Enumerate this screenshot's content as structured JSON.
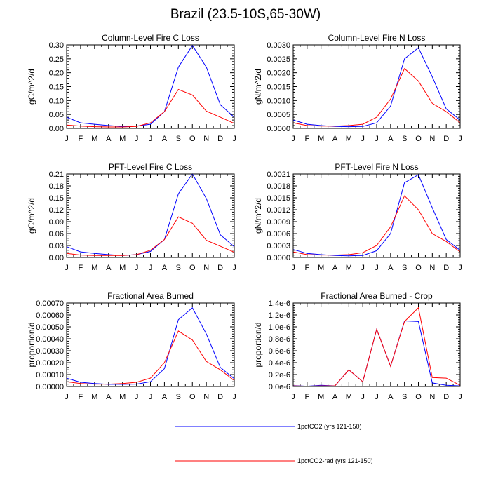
{
  "figure_title": "Brazil (23.5-10S,65-30W)",
  "legend": [
    {
      "label": "1pctCO2 (yrs 121-150)",
      "color": "#0000ff"
    },
    {
      "label": "1pctCO2-rad (yrs 121-150)",
      "color": "#ff0000"
    }
  ],
  "chart_data": [
    {
      "type": "line",
      "title": "Column-Level Fire C Loss",
      "ylabel": "gC/m^2/d",
      "categories": [
        "J",
        "F",
        "M",
        "A",
        "M",
        "J",
        "J",
        "A",
        "S",
        "O",
        "N",
        "D",
        "J"
      ],
      "ylim": [
        0,
        0.3
      ],
      "yticks": [
        "0.00",
        "0.05",
        "0.10",
        "0.15",
        "0.20",
        "0.25",
        "0.30"
      ],
      "series": [
        {
          "color": "#0000ff",
          "values": [
            0.04,
            0.02,
            0.015,
            0.01,
            0.007,
            0.008,
            0.015,
            0.06,
            0.22,
            0.298,
            0.22,
            0.085,
            0.04
          ]
        },
        {
          "color": "#ff0000",
          "values": [
            0.012,
            0.008,
            0.006,
            0.005,
            0.005,
            0.007,
            0.02,
            0.06,
            0.14,
            0.12,
            0.062,
            0.04,
            0.018
          ]
        }
      ]
    },
    {
      "type": "line",
      "title": "Column-Level Fire N Loss",
      "ylabel": "gN/m^2/d",
      "categories": [
        "J",
        "F",
        "M",
        "A",
        "M",
        "J",
        "J",
        "A",
        "S",
        "O",
        "N",
        "D",
        "J"
      ],
      "ylim": [
        0,
        0.003
      ],
      "yticks": [
        "0.0000",
        "0.0005",
        "0.0010",
        "0.0015",
        "0.0020",
        "0.0025",
        "0.0030"
      ],
      "series": [
        {
          "color": "#0000ff",
          "values": [
            0.0003,
            0.00015,
            0.0001,
            7e-05,
            6e-05,
            7e-05,
            0.0002,
            0.0008,
            0.0025,
            0.0029,
            0.00185,
            0.0007,
            0.0003
          ]
        },
        {
          "color": "#ff0000",
          "values": [
            0.0002,
            0.0001,
            8e-05,
            8e-05,
            0.0001,
            0.00015,
            0.0004,
            0.00105,
            0.00215,
            0.0017,
            0.0009,
            0.0006,
            0.0002
          ]
        }
      ]
    },
    {
      "type": "line",
      "title": "PFT-Level Fire C Loss",
      "ylabel": "gC/m^2/d",
      "categories": [
        "J",
        "F",
        "M",
        "A",
        "M",
        "J",
        "J",
        "A",
        "S",
        "O",
        "N",
        "D",
        "J"
      ],
      "ylim": [
        0,
        0.21
      ],
      "yticks": [
        "0.00",
        "0.03",
        "0.06",
        "0.09",
        "0.12",
        "0.15",
        "0.18",
        "0.21"
      ],
      "series": [
        {
          "color": "#0000ff",
          "values": [
            0.027,
            0.014,
            0.01,
            0.007,
            0.005,
            0.007,
            0.015,
            0.045,
            0.16,
            0.21,
            0.148,
            0.057,
            0.027
          ]
        },
        {
          "color": "#ff0000",
          "values": [
            0.01,
            0.006,
            0.005,
            0.005,
            0.005,
            0.007,
            0.018,
            0.045,
            0.102,
            0.086,
            0.043,
            0.028,
            0.013
          ]
        }
      ]
    },
    {
      "type": "line",
      "title": "PFT-Level Fire N Loss",
      "ylabel": "gN/m^2/d",
      "categories": [
        "J",
        "F",
        "M",
        "A",
        "M",
        "J",
        "J",
        "A",
        "S",
        "O",
        "N",
        "D",
        "J"
      ],
      "ylim": [
        0,
        0.0021
      ],
      "yticks": [
        "0.0000",
        "0.0003",
        "0.0006",
        "0.0009",
        "0.0012",
        "0.0015",
        "0.0018",
        "0.0021"
      ],
      "series": [
        {
          "color": "#0000ff",
          "values": [
            0.0002,
            0.0001,
            7e-05,
            5e-05,
            4e-05,
            5e-05,
            0.00017,
            0.0006,
            0.00188,
            0.00208,
            0.00125,
            0.00045,
            0.00018
          ]
        },
        {
          "color": "#ff0000",
          "values": [
            0.00014,
            7e-05,
            6e-05,
            6e-05,
            7e-05,
            0.00012,
            0.0003,
            0.00077,
            0.00155,
            0.0012,
            0.0006,
            0.0004,
            0.00014
          ]
        }
      ]
    },
    {
      "type": "line",
      "title": "Fractional Area Burned",
      "ylabel": "proportion/d",
      "categories": [
        "J",
        "F",
        "M",
        "A",
        "M",
        "J",
        "J",
        "A",
        "S",
        "O",
        "N",
        "D",
        "J"
      ],
      "ylim": [
        0,
        0.0007
      ],
      "yticks": [
        "0.00000",
        "0.00010",
        "0.00020",
        "0.00030",
        "0.00040",
        "0.00050",
        "0.00060",
        "0.00070"
      ],
      "series": [
        {
          "color": "#0000ff",
          "values": [
            7e-05,
            3.5e-05,
            2.5e-05,
            1.8e-05,
            1.8e-05,
            2e-05,
            4e-05,
            0.00015,
            0.00056,
            0.00066,
            0.00044,
            0.00016,
            6.5e-05
          ]
        },
        {
          "color": "#ff0000",
          "values": [
            4e-05,
            2.5e-05,
            2e-05,
            2e-05,
            2.5e-05,
            3.5e-05,
            7e-05,
            0.0002,
            0.000465,
            0.00039,
            0.00021,
            0.00014,
            5e-05
          ]
        }
      ]
    },
    {
      "type": "line",
      "title": "Fractional Area Burned - Crop",
      "ylabel": "proportion/d",
      "categories": [
        "J",
        "F",
        "M",
        "A",
        "M",
        "J",
        "J",
        "A",
        "S",
        "O",
        "N",
        "D",
        "J"
      ],
      "ylim": [
        0,
        1.4e-06
      ],
      "yticks": [
        "0.0e-6",
        "0.2e-6",
        "0.4e-6",
        "0.6e-6",
        "0.8e-6",
        "1.0e-6",
        "1.2e-6",
        "1.4e-6"
      ],
      "series": [
        {
          "color": "#0000ff",
          "values": [
            1.5e-08,
            5e-09,
            2e-08,
            1e-08,
            2.8e-07,
            8e-08,
            9.6e-07,
            3.4e-07,
            1.1e-06,
            1.09e-06,
            6e-08,
            2e-08,
            1e-08
          ]
        },
        {
          "color": "#ff0000",
          "values": [
            1e-08,
            5e-09,
            1e-08,
            1e-08,
            2.8e-07,
            8e-08,
            9.6e-07,
            3.4e-07,
            1.09e-06,
            1.32e-06,
            1.5e-07,
            1.4e-07,
            2e-08
          ]
        }
      ]
    }
  ]
}
